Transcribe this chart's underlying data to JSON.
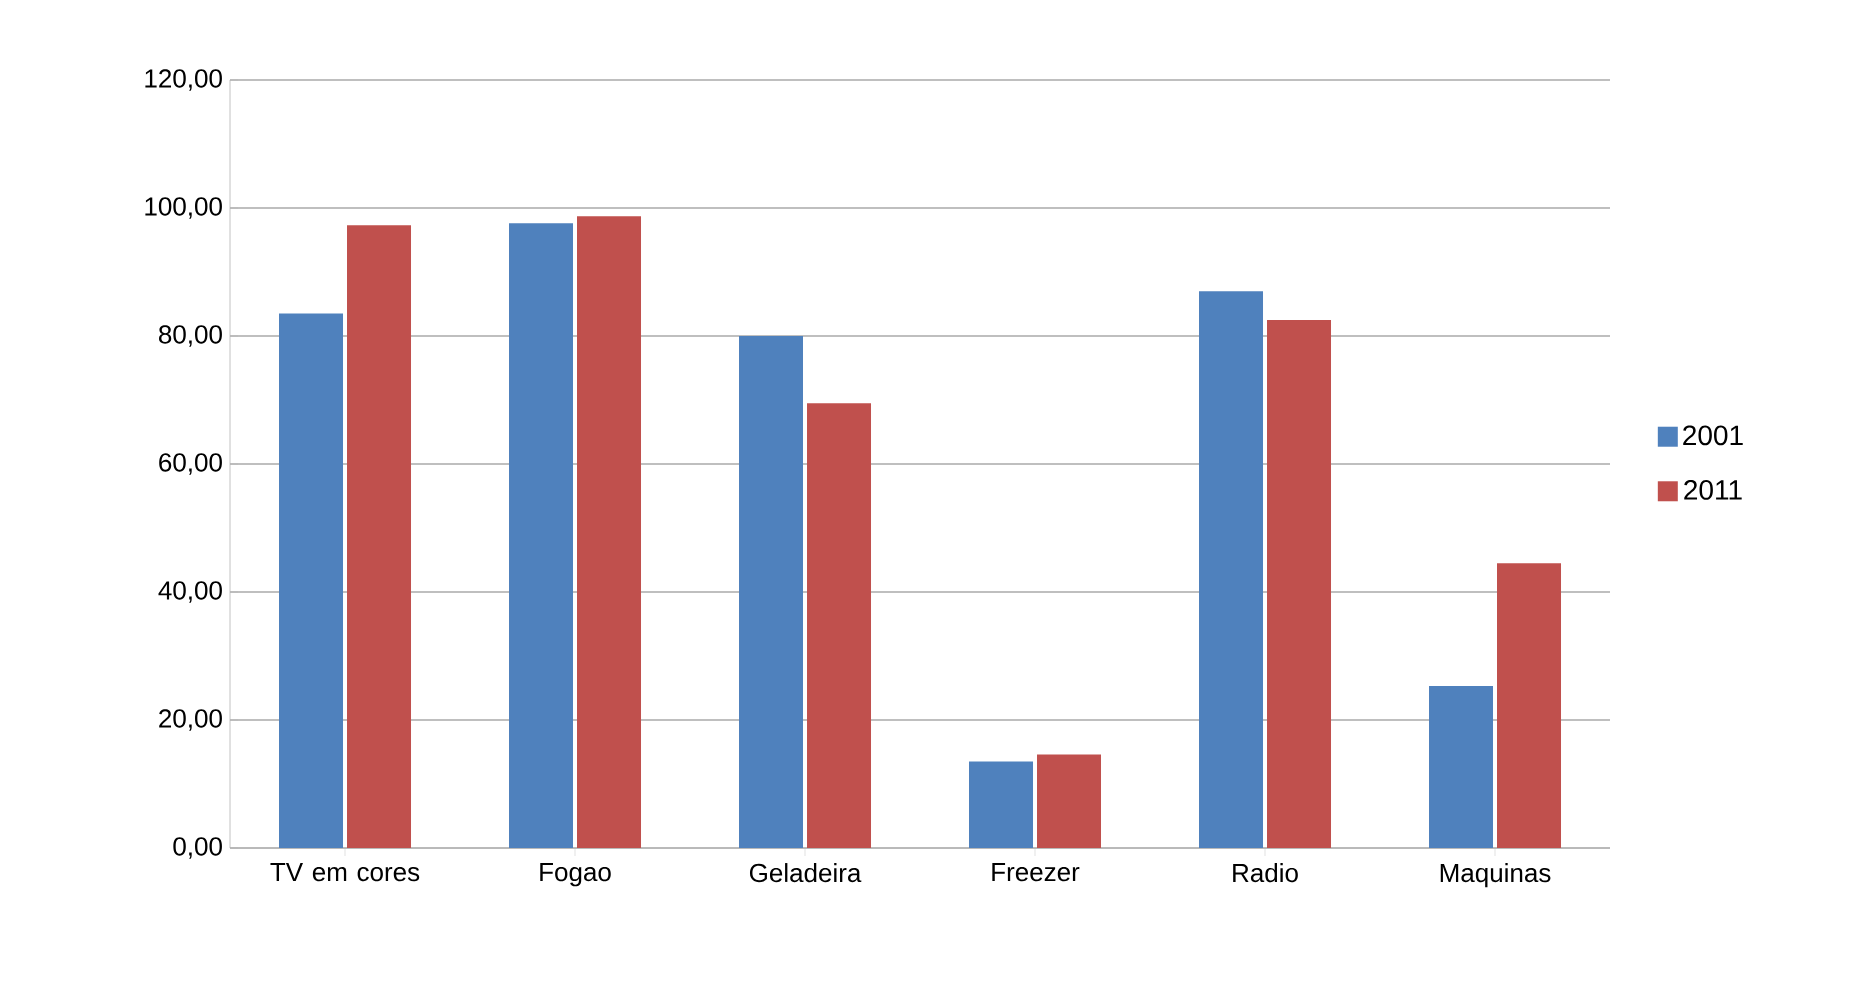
{
  "chart_data": {
    "type": "bar",
    "categories": [
      "TV em cores",
      "Fogao",
      "Geladeira",
      "Freezer",
      "Radio",
      "Maquinas"
    ],
    "series": [
      {
        "name": "2001",
        "color": "#4f81bd",
        "values": [
          83.5,
          97.6,
          80.0,
          13.5,
          87.0,
          25.3
        ]
      },
      {
        "name": "2011",
        "color": "#c0504d",
        "values": [
          97.3,
          98.7,
          69.5,
          14.6,
          82.5,
          44.5
        ]
      }
    ],
    "ylim": [
      0,
      120
    ],
    "yticks": [
      {
        "value": 0,
        "label": "0,00"
      },
      {
        "value": 20,
        "label": "20,00"
      },
      {
        "value": 40,
        "label": "40,00"
      },
      {
        "value": 60,
        "label": "60,00"
      },
      {
        "value": 80,
        "label": "80,00"
      },
      {
        "value": 100,
        "label": "100,00"
      },
      {
        "value": 120,
        "label": "120,00"
      }
    ],
    "grid": "y",
    "legend": "right"
  }
}
